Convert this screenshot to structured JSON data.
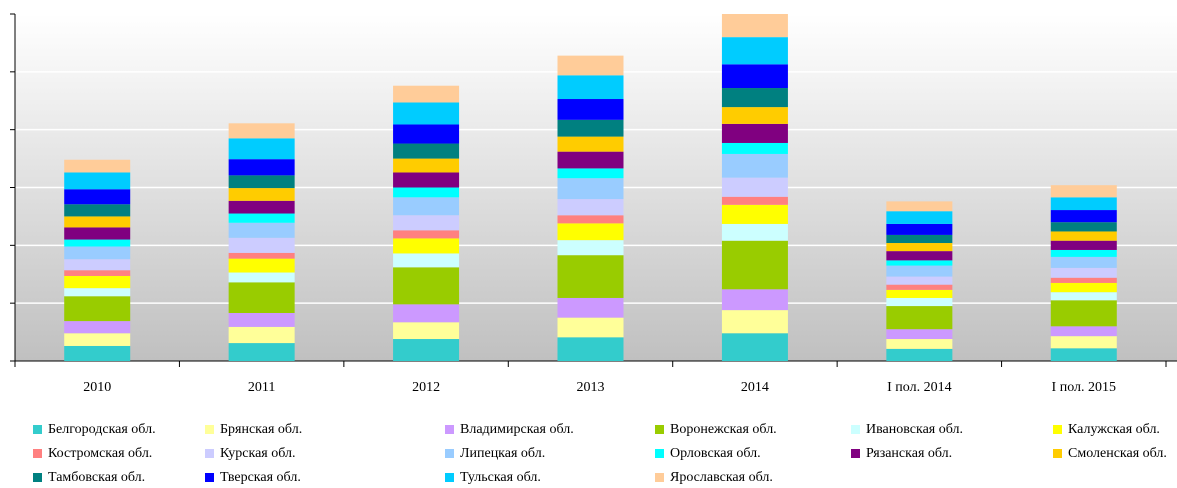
{
  "chart_data": {
    "type": "stacked_bar",
    "categories": [
      "2010",
      "2011",
      "2012",
      "2013",
      "2014",
      "I пол. 2014",
      "I пол. 2015"
    ],
    "ylim": [
      0,
      6
    ],
    "yticks": [
      0,
      1,
      2,
      3,
      4,
      5,
      6
    ],
    "grid": true,
    "series": [
      {
        "name": "Белгородская обл.",
        "color": "#33CCCC",
        "values": [
          0.26,
          0.31,
          0.38,
          0.41,
          0.48,
          0.21,
          0.22
        ]
      },
      {
        "name": "Брянская обл.",
        "color": "#FFFF99",
        "values": [
          0.22,
          0.28,
          0.29,
          0.34,
          0.4,
          0.17,
          0.21
        ]
      },
      {
        "name": "Владимирская обл.",
        "color": "#CC99FF",
        "values": [
          0.21,
          0.24,
          0.31,
          0.34,
          0.36,
          0.17,
          0.17
        ]
      },
      {
        "name": "Воронежская обл.",
        "color": "#99CC00",
        "values": [
          0.43,
          0.53,
          0.64,
          0.74,
          0.84,
          0.4,
          0.45
        ]
      },
      {
        "name": "Ивановская обл.",
        "color": "#CCFFFF",
        "values": [
          0.14,
          0.17,
          0.24,
          0.26,
          0.29,
          0.14,
          0.14
        ]
      },
      {
        "name": "Калужская обл.",
        "color": "#FFFF00",
        "values": [
          0.21,
          0.24,
          0.26,
          0.29,
          0.33,
          0.14,
          0.16
        ]
      },
      {
        "name": "Костромская обл.",
        "color": "#FF8080",
        "values": [
          0.1,
          0.1,
          0.14,
          0.14,
          0.14,
          0.09,
          0.09
        ]
      },
      {
        "name": "Курская обл.",
        "color": "#CCCCFF",
        "values": [
          0.19,
          0.26,
          0.26,
          0.28,
          0.33,
          0.14,
          0.17
        ]
      },
      {
        "name": "Липецкая обл.",
        "color": "#99CCFF",
        "values": [
          0.22,
          0.26,
          0.31,
          0.36,
          0.41,
          0.19,
          0.19
        ]
      },
      {
        "name": "Орловская обл.",
        "color": "#00FFFF",
        "values": [
          0.12,
          0.16,
          0.17,
          0.17,
          0.19,
          0.09,
          0.12
        ]
      },
      {
        "name": "Рязанская обл.",
        "color": "#800080",
        "values": [
          0.21,
          0.22,
          0.26,
          0.29,
          0.33,
          0.16,
          0.16
        ]
      },
      {
        "name": "Смоленская обл.",
        "color": "#FFCC00",
        "values": [
          0.19,
          0.22,
          0.24,
          0.26,
          0.29,
          0.14,
          0.16
        ]
      },
      {
        "name": "Тамбовская обл.",
        "color": "#008080",
        "values": [
          0.21,
          0.22,
          0.26,
          0.29,
          0.33,
          0.14,
          0.16
        ]
      },
      {
        "name": "Тверская обл.",
        "color": "#0000FF",
        "values": [
          0.26,
          0.28,
          0.33,
          0.36,
          0.41,
          0.19,
          0.21
        ]
      },
      {
        "name": "Тульская обл.",
        "color": "#00CCFF",
        "values": [
          0.29,
          0.36,
          0.38,
          0.41,
          0.47,
          0.22,
          0.22
        ]
      },
      {
        "name": "Ярославская обл.",
        "color": "#FFCC99",
        "values": [
          0.22,
          0.26,
          0.29,
          0.34,
          0.4,
          0.17,
          0.21
        ]
      }
    ]
  }
}
